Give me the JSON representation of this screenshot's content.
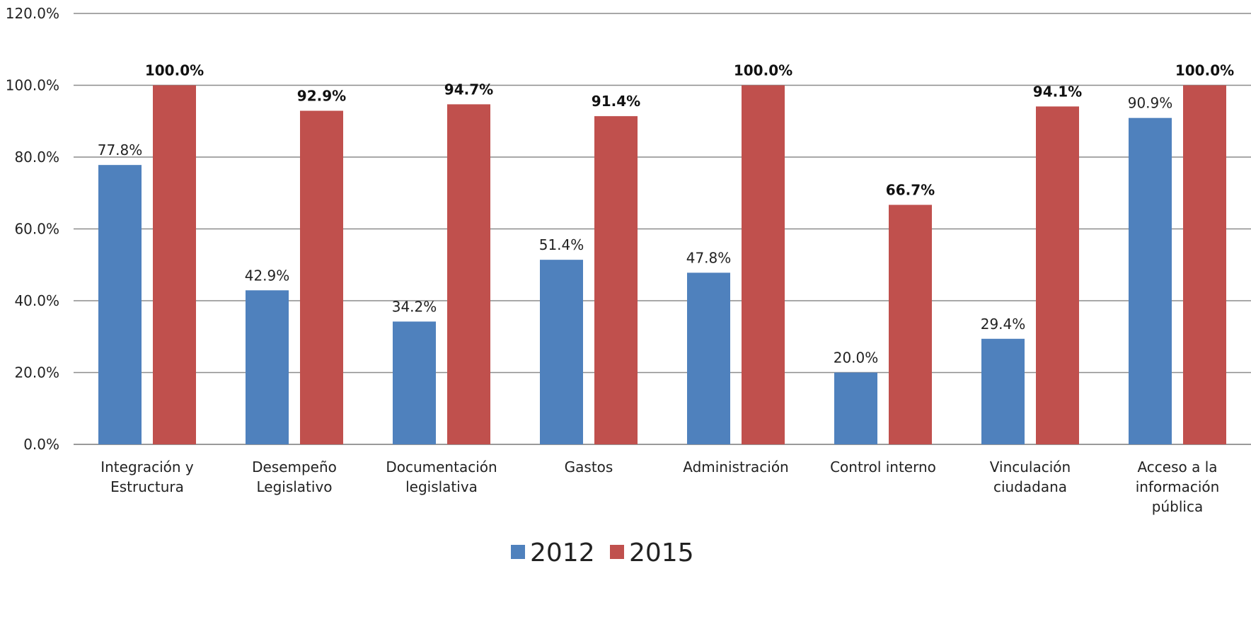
{
  "chart_data": {
    "type": "bar",
    "title": "",
    "xlabel": "",
    "ylabel": "",
    "ylim": [
      0,
      120
    ],
    "y_ticks": [
      "0.0%",
      "20.0%",
      "40.0%",
      "60.0%",
      "80.0%",
      "100.0%",
      "120.0%"
    ],
    "grid": true,
    "legend_position": "bottom",
    "categories": [
      [
        "Integración y",
        "Estructura"
      ],
      [
        "Desempeño",
        "Legislativo"
      ],
      [
        "Documentación",
        "legislativa"
      ],
      [
        "Gastos"
      ],
      [
        "Administración"
      ],
      [
        "Control interno"
      ],
      [
        "Vinculación",
        "ciudadana"
      ],
      [
        "Acceso a la",
        "información",
        "pública"
      ]
    ],
    "series": [
      {
        "name": "2012",
        "color": "#4F81BD",
        "values": [
          77.8,
          42.9,
          34.2,
          51.4,
          47.8,
          20.0,
          29.4,
          90.9
        ],
        "labels": [
          "77.8%",
          "42.9%",
          "34.2%",
          "51.4%",
          "47.8%",
          "20.0%",
          "29.4%",
          "90.9%"
        ],
        "label_bold": false
      },
      {
        "name": "2015",
        "color": "#C0504D",
        "values": [
          100.0,
          92.9,
          94.7,
          91.4,
          100.0,
          66.7,
          94.1,
          100.0
        ],
        "labels": [
          "100.0%",
          "92.9%",
          "94.7%",
          "91.4%",
          "100.0%",
          "66.7%",
          "94.1%",
          "100.0%"
        ],
        "label_bold": true
      }
    ]
  }
}
